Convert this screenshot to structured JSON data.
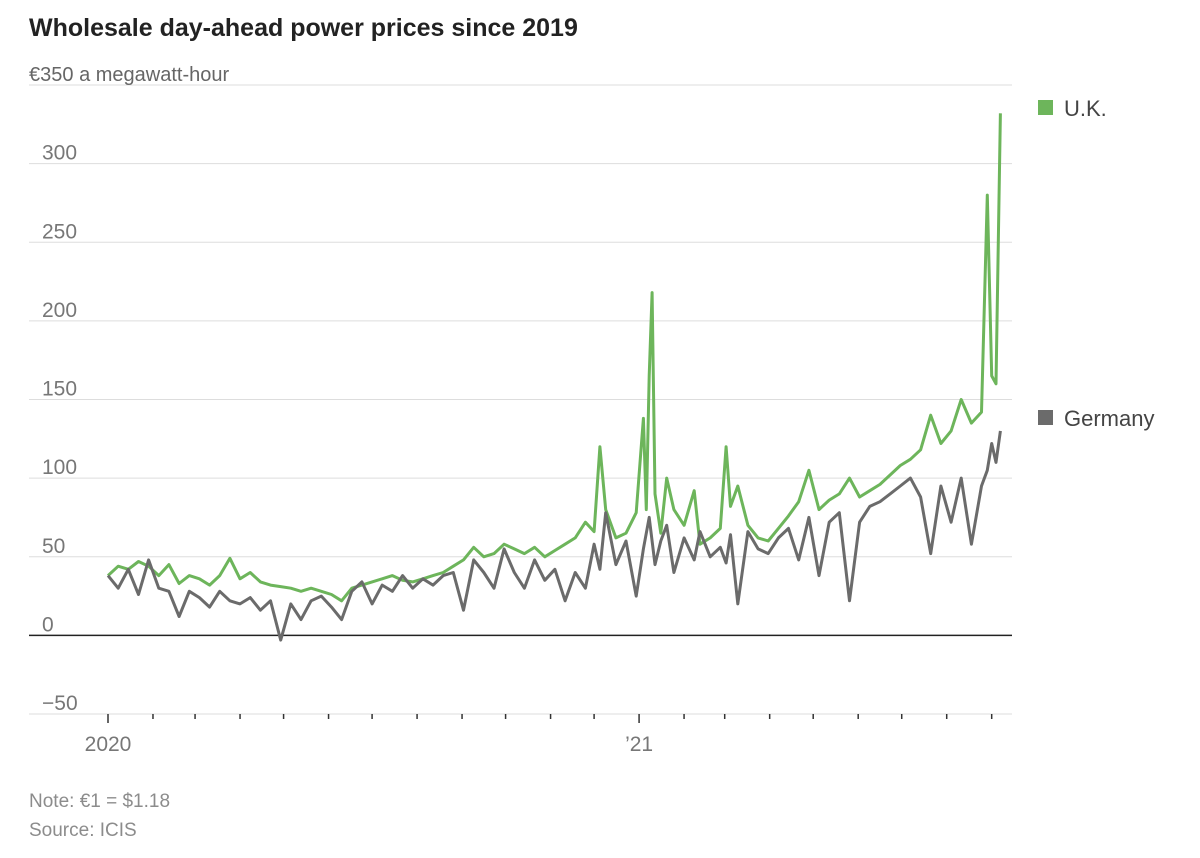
{
  "title": "Wholesale day-ahead power prices since 2019",
  "note": "Note: €1 = $1.18",
  "source": "Source: ICIS",
  "colors": {
    "uk": "#6db55b",
    "germany": "#6b6b6b",
    "grid": "#dddddd",
    "zero": "#222222"
  },
  "chart_data": {
    "type": "line",
    "title": "Wholesale day-ahead power prices since 2019",
    "ylabel": "a megawatt-hour",
    "ylim": [
      -50,
      350
    ],
    "yticks": [
      -50,
      0,
      50,
      100,
      150,
      200,
      250,
      300,
      350
    ],
    "ytick_labels": [
      "−50",
      "0",
      "50",
      "100",
      "150",
      "200",
      "250",
      "300",
      "€350"
    ],
    "y_unit_label": "a megawatt-hour",
    "xlim": [
      "2020-01-01",
      "2021-09-15"
    ],
    "xtick_labels": [
      {
        "date": "2020-01-01",
        "label": "2020"
      },
      {
        "date": "2021-01-01",
        "label": "’21"
      }
    ],
    "minor_ticks": "monthly",
    "grid": true,
    "legend": "right, beside last values",
    "series": [
      {
        "name": "U.K.",
        "color": "#6db55b",
        "points": [
          [
            "2020-01-01",
            38
          ],
          [
            "2020-01-08",
            44
          ],
          [
            "2020-01-15",
            42
          ],
          [
            "2020-01-22",
            47
          ],
          [
            "2020-01-29",
            44
          ],
          [
            "2020-02-05",
            38
          ],
          [
            "2020-02-12",
            45
          ],
          [
            "2020-02-19",
            33
          ],
          [
            "2020-02-26",
            38
          ],
          [
            "2020-03-04",
            36
          ],
          [
            "2020-03-11",
            32
          ],
          [
            "2020-03-18",
            38
          ],
          [
            "2020-03-25",
            49
          ],
          [
            "2020-04-01",
            36
          ],
          [
            "2020-04-08",
            40
          ],
          [
            "2020-04-15",
            34
          ],
          [
            "2020-04-22",
            32
          ],
          [
            "2020-04-29",
            31
          ],
          [
            "2020-05-06",
            30
          ],
          [
            "2020-05-13",
            28
          ],
          [
            "2020-05-20",
            30
          ],
          [
            "2020-05-27",
            28
          ],
          [
            "2020-06-03",
            26
          ],
          [
            "2020-06-10",
            22
          ],
          [
            "2020-06-17",
            30
          ],
          [
            "2020-06-24",
            32
          ],
          [
            "2020-07-01",
            34
          ],
          [
            "2020-07-08",
            36
          ],
          [
            "2020-07-15",
            38
          ],
          [
            "2020-07-22",
            35
          ],
          [
            "2020-07-29",
            34
          ],
          [
            "2020-08-05",
            36
          ],
          [
            "2020-08-12",
            38
          ],
          [
            "2020-08-19",
            40
          ],
          [
            "2020-08-26",
            44
          ],
          [
            "2020-09-02",
            48
          ],
          [
            "2020-09-09",
            56
          ],
          [
            "2020-09-16",
            50
          ],
          [
            "2020-09-23",
            52
          ],
          [
            "2020-09-30",
            58
          ],
          [
            "2020-10-07",
            55
          ],
          [
            "2020-10-14",
            52
          ],
          [
            "2020-10-21",
            56
          ],
          [
            "2020-10-28",
            50
          ],
          [
            "2020-11-04",
            54
          ],
          [
            "2020-11-11",
            58
          ],
          [
            "2020-11-18",
            62
          ],
          [
            "2020-11-25",
            72
          ],
          [
            "2020-12-01",
            66
          ],
          [
            "2020-12-05",
            120
          ],
          [
            "2020-12-09",
            80
          ],
          [
            "2020-12-16",
            62
          ],
          [
            "2020-12-23",
            65
          ],
          [
            "2020-12-30",
            78
          ],
          [
            "2021-01-04",
            138
          ],
          [
            "2021-01-06",
            80
          ],
          [
            "2021-01-08",
            165
          ],
          [
            "2021-01-10",
            218
          ],
          [
            "2021-01-12",
            90
          ],
          [
            "2021-01-16",
            65
          ],
          [
            "2021-01-20",
            100
          ],
          [
            "2021-01-25",
            80
          ],
          [
            "2021-02-01",
            70
          ],
          [
            "2021-02-08",
            92
          ],
          [
            "2021-02-12",
            58
          ],
          [
            "2021-02-19",
            62
          ],
          [
            "2021-02-26",
            68
          ],
          [
            "2021-03-02",
            120
          ],
          [
            "2021-03-05",
            82
          ],
          [
            "2021-03-10",
            95
          ],
          [
            "2021-03-17",
            70
          ],
          [
            "2021-03-24",
            62
          ],
          [
            "2021-03-31",
            60
          ],
          [
            "2021-04-07",
            68
          ],
          [
            "2021-04-14",
            76
          ],
          [
            "2021-04-21",
            85
          ],
          [
            "2021-04-28",
            105
          ],
          [
            "2021-05-05",
            80
          ],
          [
            "2021-05-12",
            86
          ],
          [
            "2021-05-19",
            90
          ],
          [
            "2021-05-26",
            100
          ],
          [
            "2021-06-02",
            88
          ],
          [
            "2021-06-09",
            92
          ],
          [
            "2021-06-16",
            96
          ],
          [
            "2021-06-23",
            102
          ],
          [
            "2021-06-30",
            108
          ],
          [
            "2021-07-07",
            112
          ],
          [
            "2021-07-14",
            118
          ],
          [
            "2021-07-21",
            140
          ],
          [
            "2021-07-28",
            122
          ],
          [
            "2021-08-04",
            130
          ],
          [
            "2021-08-11",
            150
          ],
          [
            "2021-08-18",
            135
          ],
          [
            "2021-08-25",
            142
          ],
          [
            "2021-08-29",
            280
          ],
          [
            "2021-09-01",
            165
          ],
          [
            "2021-09-04",
            160
          ],
          [
            "2021-09-07",
            332
          ]
        ]
      },
      {
        "name": "Germany",
        "color": "#6b6b6b",
        "points": [
          [
            "2020-01-01",
            38
          ],
          [
            "2020-01-08",
            30
          ],
          [
            "2020-01-15",
            42
          ],
          [
            "2020-01-22",
            26
          ],
          [
            "2020-01-29",
            48
          ],
          [
            "2020-02-05",
            30
          ],
          [
            "2020-02-12",
            28
          ],
          [
            "2020-02-19",
            12
          ],
          [
            "2020-02-26",
            28
          ],
          [
            "2020-03-04",
            24
          ],
          [
            "2020-03-11",
            18
          ],
          [
            "2020-03-18",
            28
          ],
          [
            "2020-03-25",
            22
          ],
          [
            "2020-04-01",
            20
          ],
          [
            "2020-04-08",
            24
          ],
          [
            "2020-04-15",
            16
          ],
          [
            "2020-04-22",
            22
          ],
          [
            "2020-04-29",
            -3
          ],
          [
            "2020-05-06",
            20
          ],
          [
            "2020-05-13",
            10
          ],
          [
            "2020-05-20",
            22
          ],
          [
            "2020-05-27",
            25
          ],
          [
            "2020-06-03",
            18
          ],
          [
            "2020-06-10",
            10
          ],
          [
            "2020-06-17",
            28
          ],
          [
            "2020-06-24",
            34
          ],
          [
            "2020-07-01",
            20
          ],
          [
            "2020-07-08",
            32
          ],
          [
            "2020-07-15",
            28
          ],
          [
            "2020-07-22",
            38
          ],
          [
            "2020-07-29",
            30
          ],
          [
            "2020-08-05",
            36
          ],
          [
            "2020-08-12",
            32
          ],
          [
            "2020-08-19",
            38
          ],
          [
            "2020-08-26",
            40
          ],
          [
            "2020-09-02",
            16
          ],
          [
            "2020-09-09",
            48
          ],
          [
            "2020-09-16",
            40
          ],
          [
            "2020-09-23",
            30
          ],
          [
            "2020-09-30",
            55
          ],
          [
            "2020-10-07",
            40
          ],
          [
            "2020-10-14",
            30
          ],
          [
            "2020-10-21",
            48
          ],
          [
            "2020-10-28",
            35
          ],
          [
            "2020-11-04",
            42
          ],
          [
            "2020-11-11",
            22
          ],
          [
            "2020-11-18",
            40
          ],
          [
            "2020-11-25",
            30
          ],
          [
            "2020-12-01",
            58
          ],
          [
            "2020-12-05",
            42
          ],
          [
            "2020-12-09",
            78
          ],
          [
            "2020-12-16",
            45
          ],
          [
            "2020-12-23",
            60
          ],
          [
            "2020-12-30",
            25
          ],
          [
            "2021-01-04",
            55
          ],
          [
            "2021-01-08",
            75
          ],
          [
            "2021-01-12",
            45
          ],
          [
            "2021-01-16",
            60
          ],
          [
            "2021-01-20",
            70
          ],
          [
            "2021-01-25",
            40
          ],
          [
            "2021-02-01",
            62
          ],
          [
            "2021-02-08",
            48
          ],
          [
            "2021-02-12",
            66
          ],
          [
            "2021-02-19",
            50
          ],
          [
            "2021-02-26",
            56
          ],
          [
            "2021-03-02",
            46
          ],
          [
            "2021-03-05",
            64
          ],
          [
            "2021-03-10",
            20
          ],
          [
            "2021-03-17",
            66
          ],
          [
            "2021-03-24",
            55
          ],
          [
            "2021-03-31",
            52
          ],
          [
            "2021-04-07",
            62
          ],
          [
            "2021-04-14",
            68
          ],
          [
            "2021-04-21",
            48
          ],
          [
            "2021-04-28",
            75
          ],
          [
            "2021-05-05",
            38
          ],
          [
            "2021-05-12",
            72
          ],
          [
            "2021-05-19",
            78
          ],
          [
            "2021-05-26",
            22
          ],
          [
            "2021-06-02",
            72
          ],
          [
            "2021-06-09",
            82
          ],
          [
            "2021-06-16",
            85
          ],
          [
            "2021-06-23",
            90
          ],
          [
            "2021-06-30",
            95
          ],
          [
            "2021-07-07",
            100
          ],
          [
            "2021-07-14",
            88
          ],
          [
            "2021-07-21",
            52
          ],
          [
            "2021-07-28",
            95
          ],
          [
            "2021-08-04",
            72
          ],
          [
            "2021-08-11",
            100
          ],
          [
            "2021-08-18",
            58
          ],
          [
            "2021-08-25",
            95
          ],
          [
            "2021-08-29",
            105
          ],
          [
            "2021-09-01",
            122
          ],
          [
            "2021-09-04",
            110
          ],
          [
            "2021-09-07",
            130
          ]
        ]
      }
    ]
  }
}
